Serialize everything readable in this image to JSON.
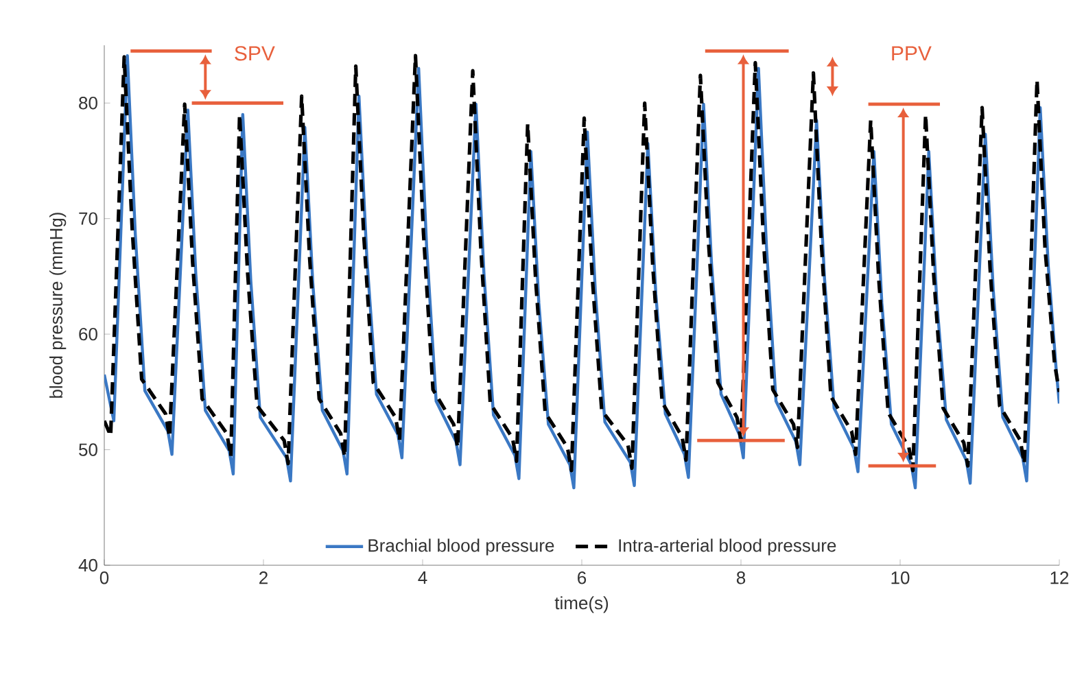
{
  "chart_data": {
    "type": "line",
    "xlabel": "time(s)",
    "ylabel": "blood pressure (mmHg)",
    "xlim": [
      0,
      12
    ],
    "ylim": [
      40,
      85
    ],
    "xticks": [
      0,
      2,
      4,
      6,
      8,
      10,
      12
    ],
    "yticks": [
      40,
      50,
      60,
      70,
      80
    ],
    "grid": false,
    "legend": "bottom",
    "marker": "none",
    "annotations": [
      {
        "text": "SPV",
        "x": 0.29,
        "y": 84.1
      },
      "PPV"
    ],
    "series": [
      {
        "name": "Brachial blood pressure",
        "color": "#3a78c4",
        "line_style": "solid",
        "x": [
          0,
          0.12,
          0.29,
          0.39,
          0.51,
          0.8,
          0.85,
          1.05,
          1.15,
          1.27,
          1.57,
          1.62,
          1.74,
          1.84,
          1.96,
          2.29,
          2.34,
          2.52,
          2.62,
          2.74,
          3.0,
          3.05,
          3.2,
          3.3,
          3.42,
          3.69,
          3.74,
          3.95,
          4.05,
          4.17,
          4.42,
          4.47,
          4.67,
          4.77,
          4.89,
          5.16,
          5.21,
          5.36,
          5.46,
          5.58,
          5.85,
          5.9,
          6.07,
          6.17,
          6.29,
          6.61,
          6.66,
          6.83,
          6.93,
          7.05,
          7.29,
          7.34,
          7.53,
          7.63,
          7.75,
          7.98,
          8.03,
          8.22,
          8.32,
          8.44,
          8.69,
          8.74,
          8.95,
          9.05,
          9.17,
          9.42,
          9.47,
          9.67,
          9.77,
          9.89,
          10.14,
          10.19,
          10.36,
          10.46,
          10.58,
          10.83,
          10.88,
          11.07,
          11.17,
          11.29,
          11.54,
          11.59,
          11.76,
          11.86,
          11.96,
          12
        ],
        "values": [
          56.5,
          52.5,
          84.1,
          68.6,
          55.1,
          51.6,
          49.6,
          79.4,
          65.2,
          53.4,
          49.9,
          47.9,
          79.0,
          64.7,
          52.8,
          49.3,
          47.3,
          77.9,
          64.4,
          53.4,
          49.9,
          47.9,
          80.6,
          66.5,
          54.8,
          51.3,
          49.3,
          83.0,
          67.6,
          54.2,
          50.7,
          48.7,
          79.9,
          65.3,
          53.0,
          49.5,
          47.5,
          75.8,
          62.7,
          52.2,
          48.7,
          46.7,
          77.5,
          63.7,
          52.4,
          48.9,
          46.9,
          76.5,
          63.5,
          53.1,
          49.6,
          47.6,
          79.9,
          66.1,
          54.8,
          51.3,
          49.3,
          83.0,
          67.6,
          54.2,
          50.7,
          48.7,
          78.5,
          64.8,
          53.6,
          50.1,
          48.1,
          75.8,
          62.7,
          52.2,
          48.7,
          46.7,
          75.8,
          62.9,
          52.6,
          49.1,
          47.1,
          77.3,
          63.8,
          52.8,
          49.3,
          47.3,
          79.6,
          66.0,
          57.0,
          54.0
        ]
      },
      {
        "name": "Intra-arterial blood pressure",
        "color": "#000000",
        "line_style": "dashed",
        "x": [
          0,
          0.08,
          0.25,
          0.35,
          0.47,
          0.77,
          0.82,
          1.01,
          1.11,
          1.23,
          1.54,
          1.59,
          1.7,
          1.8,
          1.92,
          2.26,
          2.31,
          2.48,
          2.58,
          2.7,
          2.97,
          3.02,
          3.16,
          3.26,
          3.38,
          3.66,
          3.71,
          3.91,
          4.01,
          4.13,
          4.39,
          4.44,
          4.63,
          4.73,
          4.85,
          5.13,
          5.18,
          5.32,
          5.42,
          5.54,
          5.82,
          5.87,
          6.03,
          6.13,
          6.25,
          6.58,
          6.63,
          6.79,
          6.89,
          7.01,
          7.26,
          7.31,
          7.49,
          7.59,
          7.71,
          7.95,
          8.0,
          8.18,
          8.28,
          8.4,
          8.66,
          8.71,
          8.91,
          9.01,
          9.13,
          9.39,
          9.44,
          9.63,
          9.73,
          9.85,
          10.11,
          10.16,
          10.32,
          10.42,
          10.54,
          10.8,
          10.85,
          11.03,
          11.13,
          11.25,
          11.51,
          11.56,
          11.72,
          11.82,
          11.94,
          12
        ],
        "values": [
          52.5,
          51.2,
          84.0,
          69.2,
          56.1,
          53.1,
          51.1,
          79.9,
          66.2,
          54.4,
          51.4,
          49.4,
          79.0,
          65.4,
          53.8,
          50.8,
          48.8,
          80.6,
          66.6,
          54.4,
          51.4,
          49.4,
          83.2,
          68.6,
          55.8,
          52.8,
          50.8,
          84.1,
          68.8,
          55.2,
          52.2,
          50.2,
          82.8,
          67.6,
          54.0,
          51.0,
          49.0,
          78.2,
          64.7,
          53.2,
          50.2,
          48.2,
          78.7,
          65.1,
          53.4,
          50.4,
          48.4,
          80.0,
          66.1,
          54.1,
          51.1,
          49.1,
          82.4,
          68.2,
          55.8,
          52.8,
          50.8,
          83.5,
          68.5,
          55.2,
          52.2,
          50.2,
          82.6,
          67.8,
          54.6,
          51.6,
          49.6,
          78.5,
          64.9,
          53.2,
          50.2,
          48.2,
          79.0,
          65.3,
          53.6,
          50.6,
          48.6,
          79.6,
          65.7,
          53.8,
          50.8,
          48.8,
          82.0,
          67.5,
          57.5,
          55.0
        ]
      }
    ]
  }
}
